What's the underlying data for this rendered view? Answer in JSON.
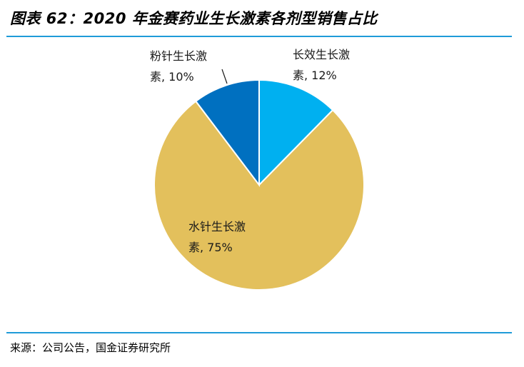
{
  "title": "图表 62：2020 年金赛药业生长激素各剂型销售占比",
  "source": "来源：公司公告，国金证券研究所",
  "chart_data": {
    "type": "pie",
    "title": "图表 62：2020 年金赛药业生长激素各剂型销售占比",
    "start_angle_deg": 0,
    "direction": "clockwise",
    "slices": [
      {
        "name": "长效生长激素",
        "value": 12,
        "display": "12%",
        "color": "#00b0f0",
        "label_line1": "长效生长激",
        "label_line2": "素, 12%"
      },
      {
        "name": "水针生长激素",
        "value": 75,
        "display": "75%",
        "color": "#e3c05c",
        "label_line1": "水针生长激",
        "label_line2": "素, 75%"
      },
      {
        "name": "粉针生长激素",
        "value": 10,
        "display": "10%",
        "color": "#0070c0",
        "label_line1": "粉针生长激",
        "label_line2": "素, 10%"
      }
    ],
    "legend": "none"
  }
}
